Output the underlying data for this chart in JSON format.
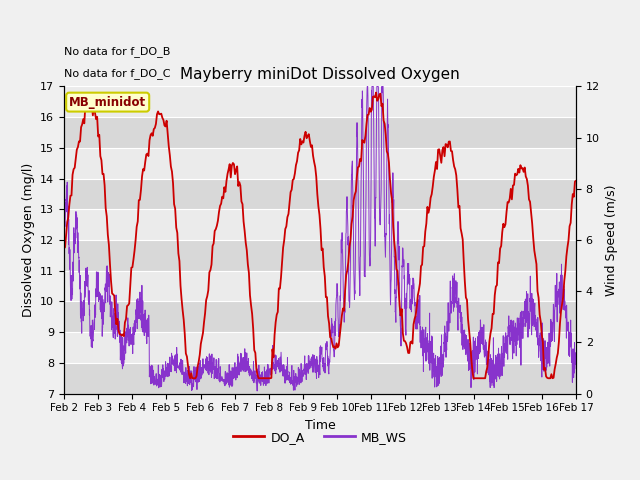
{
  "title": "Mayberry miniDot Dissolved Oxygen",
  "ylabel_left": "Dissolved Oxygen (mg/l)",
  "ylabel_right": "Wind Speed (m/s)",
  "xlabel": "Time",
  "ylim_left": [
    7.0,
    17.0
  ],
  "ylim_right": [
    0,
    12
  ],
  "yticks_left": [
    7.0,
    8.0,
    9.0,
    10.0,
    11.0,
    12.0,
    13.0,
    14.0,
    15.0,
    16.0,
    17.0
  ],
  "yticks_right": [
    0,
    2,
    4,
    6,
    8,
    10,
    12
  ],
  "xtick_labels": [
    "Feb 2",
    "Feb 3",
    "Feb 4",
    "Feb 5",
    "Feb 6",
    "Feb 7",
    "Feb 8",
    "Feb 9",
    "Feb 10",
    "Feb 11",
    "Feb 12",
    "Feb 13",
    "Feb 14",
    "Feb 15",
    "Feb 16",
    "Feb 17"
  ],
  "annotation1": "No data for f_DO_B",
  "annotation2": "No data for f_DO_C",
  "legend_box_text": "MB_minidot",
  "legend_box_facecolor": "#ffffcc",
  "legend_box_edgecolor": "#cccc00",
  "legend_box_textcolor": "#880000",
  "line_DO_A_color": "#cc0000",
  "line_MB_WS_color": "#8833cc",
  "legend_DO_A": "DO_A",
  "legend_MB_WS": "MB_WS",
  "fig_facecolor": "#f0f0f0",
  "plot_facecolor": "#e8e8e8",
  "band_dark": "#d8d8d8",
  "band_light": "#ebebeb",
  "n_points_do": 480,
  "n_points_ws": 2400
}
